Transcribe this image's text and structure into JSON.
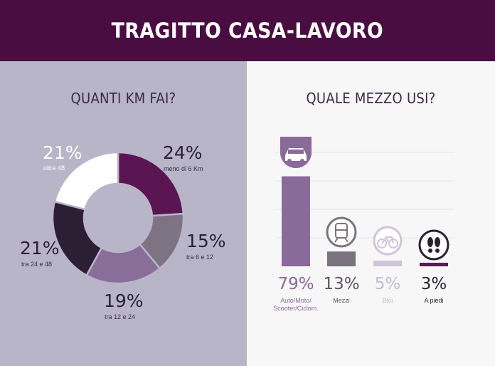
{
  "header": {
    "title": "TRAGITTO CASA-LAVORO"
  },
  "colors": {
    "header_bg": "#4a0d42",
    "left_bg": "#b9b5c9",
    "right_bg": "#f7f7f7",
    "donut": [
      "#5a1452",
      "#7d7383",
      "#8a6e9a",
      "#2d1f33",
      "#ffffff"
    ],
    "bars": [
      "#8a6a98",
      "#7b7480",
      "#cec5db",
      "#5b1a52"
    ]
  },
  "left": {
    "title": "QUANTI KM FAI?"
  },
  "right": {
    "title": "QUALE MEZZO USI?"
  },
  "chart_data": [
    {
      "type": "pie",
      "title": "QUANTI KM FAI?",
      "slices": [
        {
          "value": 24,
          "pct_label": "24%",
          "label": "meno di 6 Km"
        },
        {
          "value": 15,
          "pct_label": "15%",
          "label": "tra 6 e 12"
        },
        {
          "value": 19,
          "pct_label": "19%",
          "label": "tra 12 e 24"
        },
        {
          "value": 21,
          "pct_label": "21%",
          "label": "tra 24 e 48"
        },
        {
          "value": 21,
          "pct_label": "21%",
          "label": "oltre 48"
        }
      ]
    },
    {
      "type": "bar",
      "title": "QUALE MEZZO USI?",
      "categories": [
        "Auto/Moto/Scooter/Ciclom.",
        "Mezzi",
        "Bici",
        "A piedi"
      ],
      "category_lines": [
        [
          "Auto/Moto/",
          "Scooter/Ciclom."
        ],
        [
          "Mezzi"
        ],
        [
          "Bici"
        ],
        [
          "A piedi"
        ]
      ],
      "values": [
        79,
        13,
        5,
        3
      ],
      "value_labels": [
        "79%",
        "13%",
        "5%",
        "3%"
      ],
      "icons": [
        "car-icon",
        "train-icon",
        "bicycle-icon",
        "footprints-icon"
      ],
      "grid": true,
      "ylim": [
        0,
        100
      ]
    }
  ]
}
